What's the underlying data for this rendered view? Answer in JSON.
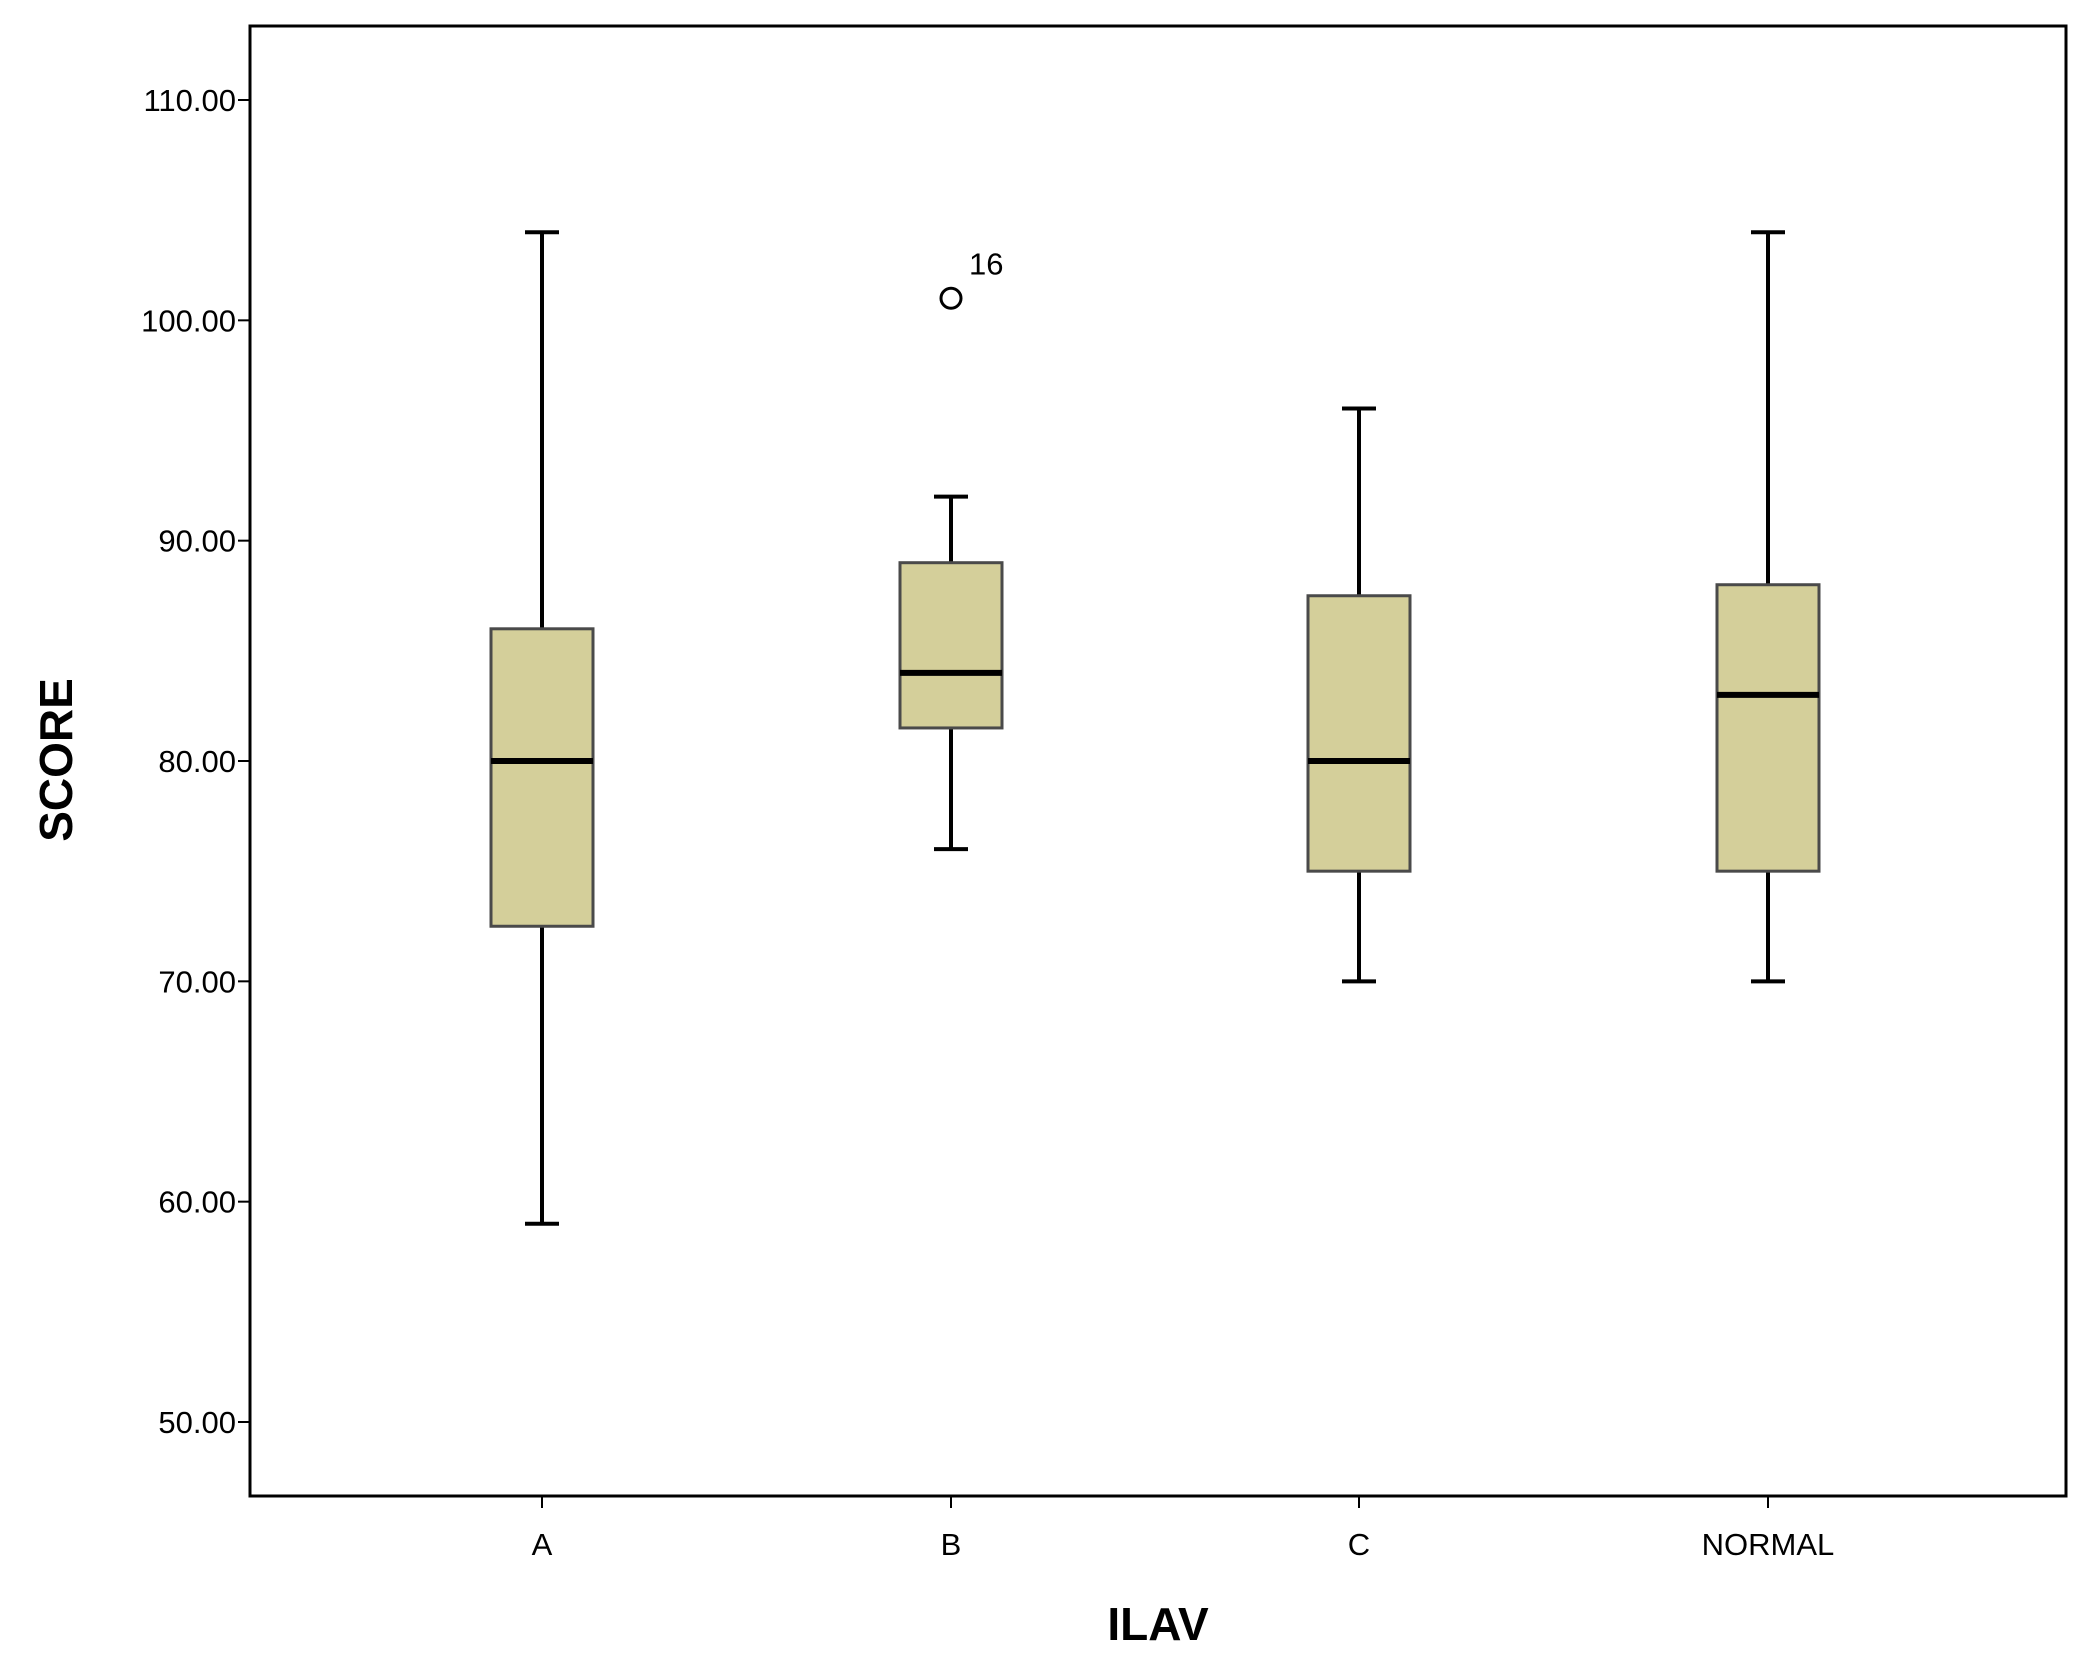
{
  "chart_data": {
    "type": "boxplot",
    "xlabel": "ILAV",
    "ylabel": "SCORE",
    "ylim": [
      45,
      114
    ],
    "yticks": [
      50,
      60,
      70,
      80,
      90,
      100,
      110
    ],
    "ytick_labels": [
      "50.00",
      "60.00",
      "70.00",
      "80.00",
      "90.00",
      "100.00",
      "110.00"
    ],
    "categories": [
      "A",
      "B",
      "C",
      "NORMAL"
    ],
    "box_color": "#d4cf9a",
    "grid": false,
    "series": [
      {
        "category": "A",
        "whisker_low": 59,
        "q1": 72.5,
        "median": 80,
        "q3": 86,
        "whisker_high": 104,
        "outliers": []
      },
      {
        "category": "B",
        "whisker_low": 76,
        "q1": 81.5,
        "median": 84,
        "q3": 89,
        "whisker_high": 92,
        "outliers": [
          {
            "value": 101,
            "label": "16"
          }
        ]
      },
      {
        "category": "C",
        "whisker_low": 70,
        "q1": 75,
        "median": 80,
        "q3": 87.5,
        "whisker_high": 96,
        "outliers": []
      },
      {
        "category": "NORMAL",
        "whisker_low": 70,
        "q1": 75,
        "median": 83,
        "q3": 88,
        "whisker_high": 104,
        "outliers": []
      }
    ]
  }
}
